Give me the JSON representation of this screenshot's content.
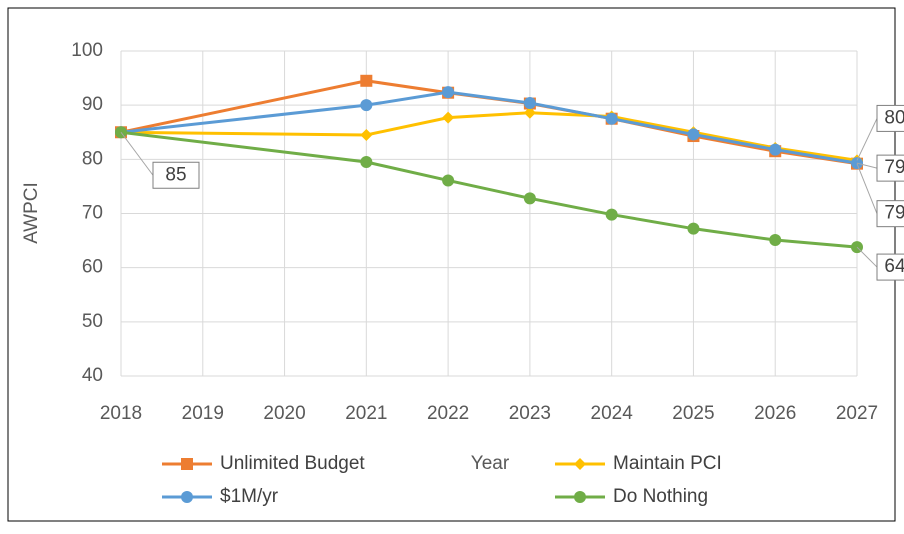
{
  "chart_data": {
    "type": "line",
    "x_label": "Year",
    "y_label": "AWPCI",
    "x": [
      2018,
      2021,
      2022,
      2023,
      2024,
      2025,
      2026,
      2027
    ],
    "series": [
      {
        "name": "Unlimited Budget",
        "color": "#ED7D31",
        "marker": "square",
        "values": [
          85,
          94.5,
          92.3,
          90.3,
          87.5,
          84.3,
          81.5,
          79.2
        ],
        "value_labels": [
          null,
          null,
          null,
          null,
          null,
          null,
          null,
          "79"
        ]
      },
      {
        "name": "Maintain PCI",
        "color": "#FFC000",
        "marker": "diamond",
        "values": [
          85,
          84.5,
          87.7,
          88.6,
          87.9,
          85,
          82.1,
          79.8
        ],
        "value_labels": [
          null,
          null,
          null,
          null,
          null,
          null,
          null,
          "80"
        ]
      },
      {
        "name": "$1M/yr",
        "color": "#5B9BD5",
        "marker": "circle",
        "values": [
          85,
          90,
          92.4,
          90.4,
          87.5,
          84.6,
          81.8,
          79.3
        ],
        "value_labels": [
          null,
          null,
          null,
          null,
          null,
          null,
          null,
          "79"
        ]
      },
      {
        "name": "Do Nothing",
        "color": "#70AD47",
        "marker": "circle",
        "values": [
          85,
          79.5,
          76.1,
          72.8,
          69.8,
          67.2,
          65.1,
          63.8
        ],
        "value_labels": [
          "85",
          null,
          null,
          null,
          null,
          null,
          null,
          "64"
        ]
      }
    ],
    "xlim": [
      2018,
      2027
    ],
    "xticks": [
      2018,
      2019,
      2020,
      2021,
      2022,
      2023,
      2024,
      2025,
      2026,
      2027
    ],
    "ylim": [
      40,
      100
    ],
    "yticks": [
      40,
      50,
      60,
      70,
      80,
      90,
      100
    ],
    "grid": true,
    "legend": "bottom"
  }
}
